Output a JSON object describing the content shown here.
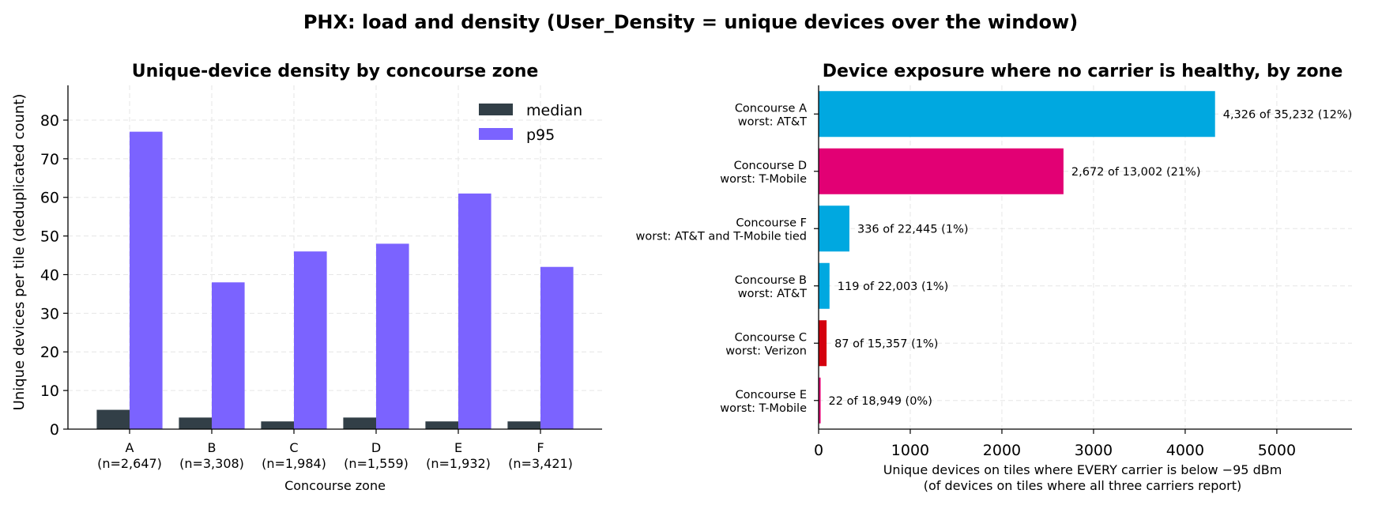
{
  "figure": {
    "suptitle": "PHX: load and density (User_Density = unique devices over the window)"
  },
  "chart_data": [
    {
      "type": "bar",
      "title": "Unique-device density by concourse zone",
      "xlabel": "Concourse zone",
      "ylabel": "Unique devices per tile (deduplicated count)",
      "categories": [
        "A",
        "B",
        "C",
        "D",
        "E",
        "F"
      ],
      "category_counts": [
        "(n=2,647)",
        "(n=3,308)",
        "(n=1,984)",
        "(n=1,559)",
        "(n=1,932)",
        "(n=3,421)"
      ],
      "series": [
        {
          "name": "median",
          "color": "#323f47",
          "values": [
            5,
            3,
            2,
            3,
            2,
            2
          ]
        },
        {
          "name": "p95",
          "color": "#7b63ff",
          "values": [
            77,
            38,
            46,
            48,
            61,
            42
          ]
        }
      ],
      "ylim": [
        0,
        89
      ],
      "yticks": [
        0,
        10,
        20,
        30,
        40,
        50,
        60,
        70,
        80
      ],
      "grid": true,
      "legend": "top-right"
    },
    {
      "type": "bar",
      "orientation": "horizontal",
      "title": "Device exposure where no carrier is healthy, by zone",
      "xlabel": "Unique devices on tiles where EVERY carrier is below −95 dBm",
      "xlabel2": "(of devices on tiles where all three carriers report)",
      "xlim": [
        0,
        5820
      ],
      "xticks": [
        0,
        1000,
        2000,
        3000,
        4000,
        5000
      ],
      "grid": true,
      "rows": [
        {
          "zone": "Concourse A",
          "worst": "worst: AT&T",
          "value": 4326,
          "label": "4,326 of 35,232 (12%)",
          "color": "#00a8e0"
        },
        {
          "zone": "Concourse D",
          "worst": "worst: T-Mobile",
          "value": 2672,
          "label": "2,672 of 13,002 (21%)",
          "color": "#e20074"
        },
        {
          "zone": "Concourse F",
          "worst": "worst: AT&T and T-Mobile tied",
          "value": 336,
          "label": "336 of 22,445 (1%)",
          "color": "#00a8e0"
        },
        {
          "zone": "Concourse B",
          "worst": "worst: AT&T",
          "value": 119,
          "label": "119 of 22,003 (1%)",
          "color": "#00a8e0"
        },
        {
          "zone": "Concourse C",
          "worst": "worst: Verizon",
          "value": 87,
          "label": "87 of 15,357 (1%)",
          "color": "#d4000e"
        },
        {
          "zone": "Concourse E",
          "worst": "worst: T-Mobile",
          "value": 22,
          "label": "22 of 18,949 (0%)",
          "color": "#e20074"
        }
      ]
    }
  ]
}
